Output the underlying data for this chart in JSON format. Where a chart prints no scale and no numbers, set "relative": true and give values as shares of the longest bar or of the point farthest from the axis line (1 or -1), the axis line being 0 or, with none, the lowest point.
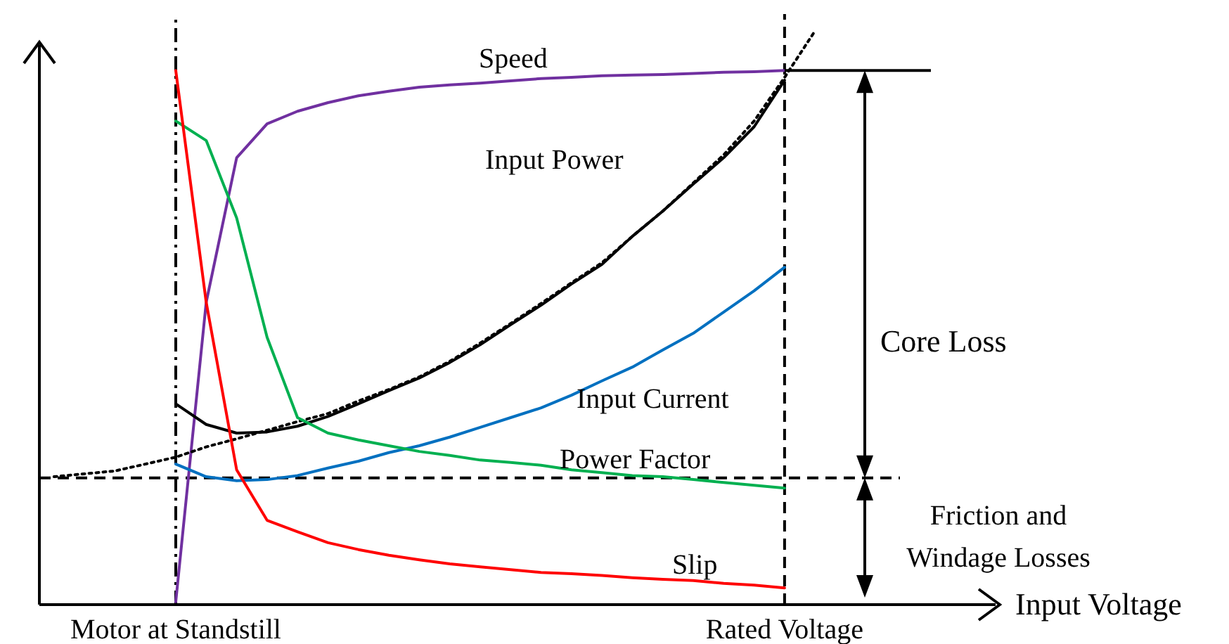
{
  "chart_data": {
    "type": "line",
    "relative": true,
    "xlabel": "Input Voltage",
    "categories": [
      null,
      null,
      null,
      null,
      "Motor at Standstill",
      null,
      null,
      null,
      null,
      null,
      null,
      null,
      null,
      null,
      null,
      null,
      null,
      null,
      null,
      null,
      null,
      null,
      null,
      null,
      "Rated Voltage",
      null
    ],
    "series": [
      {
        "name": "Speed",
        "color": "#7030a0",
        "values": [
          null,
          null,
          null,
          null,
          0.005,
          0.527,
          0.779,
          0.838,
          0.86,
          0.875,
          0.887,
          0.895,
          0.902,
          0.906,
          0.909,
          0.913,
          0.917,
          0.919,
          0.922,
          0.923,
          0.924,
          0.926,
          0.928,
          0.929,
          0.931,
          null
        ]
      },
      {
        "name": "Input Power",
        "color": "#000000",
        "values": [
          null,
          null,
          null,
          null,
          0.35,
          0.314,
          0.299,
          0.301,
          0.311,
          0.328,
          0.35,
          0.373,
          0.395,
          0.422,
          0.453,
          0.488,
          0.522,
          0.559,
          0.593,
          0.642,
          0.686,
          0.733,
          0.779,
          0.833,
          0.914,
          null
        ]
      },
      {
        "color": "#000000",
        "line_style": "dotted",
        "values": [
          0.223,
          0.228,
          0.233,
          0.245,
          0.257,
          0.275,
          0.289,
          0.304,
          0.319,
          0.333,
          0.355,
          0.375,
          0.397,
          0.424,
          0.456,
          0.49,
          0.525,
          0.561,
          0.596,
          0.642,
          0.686,
          0.735,
          0.784,
          0.843,
          0.919,
          1
        ]
      },
      {
        "name": "Input Current",
        "color": "#0070c0",
        "values": [
          null,
          null,
          null,
          null,
          0.245,
          0.223,
          0.216,
          0.218,
          0.225,
          0.238,
          0.25,
          0.265,
          0.277,
          0.292,
          0.309,
          0.326,
          0.343,
          0.365,
          0.39,
          0.414,
          0.444,
          0.473,
          0.51,
          0.547,
          0.588,
          null
        ]
      },
      {
        "name": "Power Factor",
        "color": "#00b050",
        "values": [
          null,
          null,
          null,
          null,
          0.843,
          0.809,
          0.674,
          0.466,
          0.326,
          0.299,
          0.287,
          0.277,
          0.267,
          0.26,
          0.252,
          0.248,
          0.243,
          0.235,
          0.23,
          0.225,
          0.223,
          0.218,
          0.213,
          0.208,
          0.203,
          null
        ]
      },
      {
        "name": "Slip",
        "color": "#ff0000",
        "values": [
          null,
          null,
          null,
          null,
          0.931,
          0.527,
          0.235,
          0.147,
          0.127,
          0.108,
          0.096,
          0.086,
          0.078,
          0.071,
          0.066,
          0.061,
          0.056,
          0.054,
          0.051,
          0.047,
          0.044,
          0.042,
          0.037,
          0.034,
          0.029,
          null
        ]
      }
    ],
    "ref_lines": [
      {
        "axis": "x",
        "value": "Motor at Standstill",
        "line_style": "dashdot"
      },
      {
        "axis": "x",
        "value": "Rated Voltage",
        "line_style": "dashed"
      },
      {
        "axis": "y",
        "value": 0.221,
        "line_style": "dashed"
      }
    ],
    "annotations": [
      "Core Loss",
      "Friction and Windage Losses"
    ]
  }
}
